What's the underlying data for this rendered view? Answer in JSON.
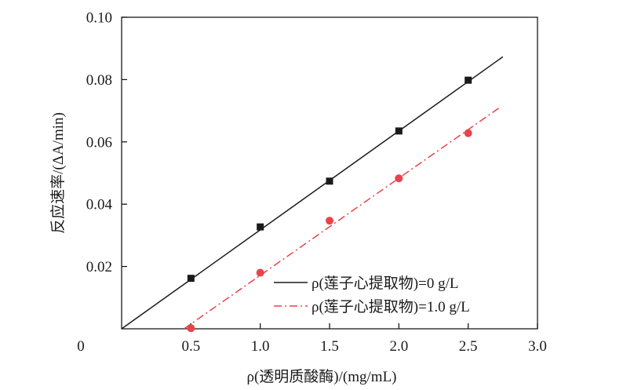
{
  "chart_data": {
    "type": "scatter",
    "xlabel": "ρ(透明质酸酶)/(mg/mL)",
    "ylabel": "反应速率/(ΔA/min)",
    "xlim": [
      0,
      3.0
    ],
    "ylim": [
      0,
      0.1
    ],
    "origin_label": "0",
    "x_ticks": [
      {
        "value": 0.5,
        "label": "0.5"
      },
      {
        "value": 1.0,
        "label": "1.0"
      },
      {
        "value": 1.5,
        "label": "1.5"
      },
      {
        "value": 2.0,
        "label": "2.0"
      },
      {
        "value": 2.5,
        "label": "2.5"
      },
      {
        "value": 3.0,
        "label": "3.0"
      }
    ],
    "y_ticks": [
      {
        "value": 0.02,
        "label": "0.02"
      },
      {
        "value": 0.04,
        "label": "0.04"
      },
      {
        "value": 0.06,
        "label": "0.06"
      },
      {
        "value": 0.08,
        "label": "0.08"
      },
      {
        "value": 0.1,
        "label": "0.10"
      }
    ],
    "grid": false,
    "legend_position": "bottom-right",
    "series": [
      {
        "name": "ρ(莲子心提取物)=0 g/L",
        "marker": "square",
        "color": "#1a1a1a",
        "line_style": "solid",
        "x": [
          0.5,
          1.0,
          1.5,
          2.0,
          2.5
        ],
        "y": [
          0.0162,
          0.0327,
          0.0474,
          0.0635,
          0.0798
        ],
        "fit_line": {
          "x": [
            0,
            2.75
          ],
          "y": [
            0.0,
            0.0873
          ]
        }
      },
      {
        "name": "ρ(莲子心提取物)=1.0 g/L",
        "marker": "circle",
        "color": "#e8434b",
        "line_style": "dash-dot",
        "x": [
          0.5,
          1.0,
          1.5,
          2.0,
          2.5
        ],
        "y": [
          0.0002,
          0.018,
          0.0347,
          0.0483,
          0.0628
        ],
        "fit_line": {
          "x": [
            0.45,
            2.72
          ],
          "y": [
            0.0,
            0.0708
          ]
        }
      }
    ]
  }
}
